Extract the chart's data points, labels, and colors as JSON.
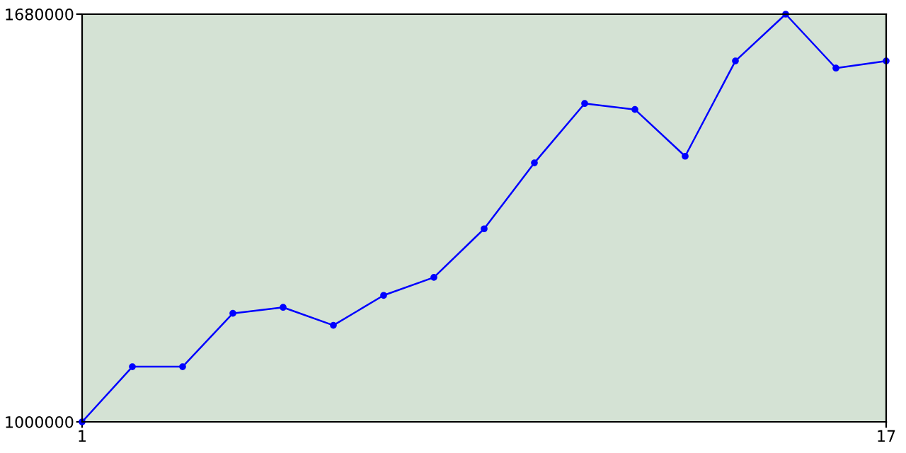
{
  "chart_data": {
    "type": "line",
    "x": [
      1,
      2,
      3,
      4,
      5,
      6,
      7,
      8,
      9,
      10,
      11,
      12,
      13,
      14,
      15,
      16,
      17
    ],
    "series": [
      {
        "color": "#0000ff",
        "values": [
          1000000,
          1092000,
          1092000,
          1181000,
          1191000,
          1161000,
          1211000,
          1241000,
          1322000,
          1432000,
          1531000,
          1521000,
          1443000,
          1602000,
          1680000,
          1590000,
          1602000
        ]
      }
    ],
    "xlim": [
      1,
      17
    ],
    "xticks": [
      1,
      17
    ],
    "ylim": [
      1000000,
      1680000
    ],
    "yticks": [
      1000000,
      1680000
    ],
    "grid": false,
    "legend": false,
    "marker": "circle",
    "line_style": "solid"
  }
}
